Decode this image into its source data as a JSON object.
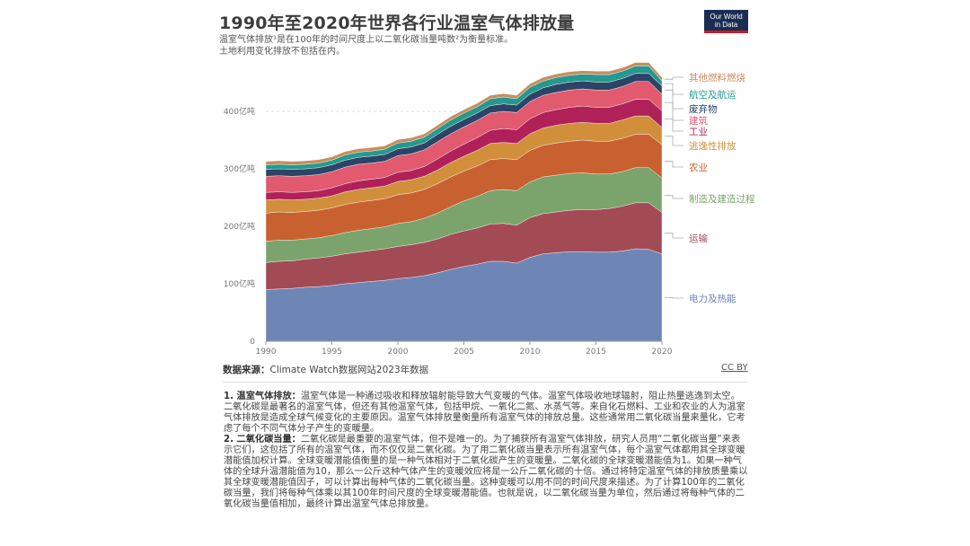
{
  "header": {
    "title": "1990年至2020年世界各行业温室气体排放量",
    "subtitle_line1": "温室气体排放¹是在100年的时间尺度上以二氧化碳当量吨数²为衡量标准。",
    "subtitle_line2": "土地利用变化排放不包括在内。",
    "logo_line1": "Our World",
    "logo_line2": "in Data"
  },
  "footer": {
    "source_label": "数据来源：",
    "source_text": "Climate Watch数据网站2023年数据",
    "license": "CC BY"
  },
  "notes": {
    "n1_title": "1. 温室气体排放：",
    "n1_text": "温室气体是一种通过吸收和释放辐射能导致大气变暖的气体。温室气体吸收地球辐射，阻止热量逃逸到太空。二氧化碳是最著名的温室气体，但还有其他温室气体，包括甲烷、一氧化二氮、水蒸气等。来自化石燃料、工业和农业的人为温室气体排放是造成全球气候变化的主要原因。温室气体排放量衡量所有温室气体的排放总量。这些通常用二氧化碳当量来量化，它考虑了每个不同气体分子产生的变暖量。",
    "n2_title": "2. 二氧化碳当量：",
    "n2_text": "二氧化碳是最重要的温室气体，但不是唯一的。为了捕获所有温室气体排放，研究人员用“二氧化碳当量”来表示它们，这包括了所有的温室气体，而不仅仅是二氧化碳。为了用二氧化碳当量表示所有温室气体，每个温室气体都用其全球变暖潜能值加权计算。全球变暖潜能值衡量的是一种气体相对于二氧化碳产生的变暖量。二氧化碳的全球变暖潜能值为1。如果一种气体的全球升温潜能值为10，那么一公斤这种气体产生的变暖效应将是一公斤二氧化碳的十倍。通过将特定温室气体的排放质量乘以其全球变暖潜能值因子，可以计算出每种气体的二氧化碳当量。这种变暖可以用不同的时间尺度来描述。为了计算100年的二氧化碳当量，我们将每种气体乘以其100年时间尺度的全球变暖潜能值。也就是说，以二氧化碳当量为单位，然后通过将每种气体的二氧化碳当量值相加，最终计算出温室气体总排放量。"
  },
  "chart_data": {
    "type": "area",
    "stacked": true,
    "x": [
      1990,
      1991,
      1992,
      1993,
      1994,
      1995,
      1996,
      1997,
      1998,
      1999,
      2000,
      2001,
      2002,
      2003,
      2004,
      2005,
      2006,
      2007,
      2008,
      2009,
      2010,
      2011,
      2012,
      2013,
      2014,
      2015,
      2016,
      2017,
      2018,
      2019,
      2020
    ],
    "ylim": [
      0,
      500
    ],
    "yticks": [
      0,
      100,
      200,
      300,
      400
    ],
    "ytick_labels": [
      "0",
      "100亿吨",
      "200亿吨",
      "300亿吨",
      "400亿吨"
    ],
    "xticks": [
      1990,
      1995,
      2000,
      2005,
      2010,
      2015,
      2020
    ],
    "series": [
      {
        "name": "电力及热能",
        "color": "#6e86b6",
        "values": [
          90,
          91,
          92,
          94,
          95,
          97,
          100,
          102,
          104,
          106,
          109,
          111,
          114,
          119,
          125,
          130,
          134,
          139,
          139,
          136,
          146,
          152,
          154,
          156,
          156,
          155,
          155,
          157,
          161,
          160,
          152
        ]
      },
      {
        "name": "运输",
        "color": "#a24b55",
        "values": [
          47,
          48,
          48,
          49,
          50,
          51,
          52,
          53,
          54,
          55,
          56,
          57,
          58,
          59,
          61,
          62,
          63,
          65,
          66,
          66,
          69,
          70,
          71,
          72,
          73,
          74,
          76,
          78,
          80,
          81,
          72
        ]
      },
      {
        "name": "制造及建造过程",
        "color": "#7ba36c",
        "values": [
          37,
          37,
          36,
          35,
          35,
          36,
          37,
          38,
          38,
          38,
          40,
          40,
          42,
          45,
          48,
          52,
          55,
          58,
          59,
          60,
          62,
          64,
          64,
          64,
          64,
          62,
          60,
          60,
          61,
          61,
          60
        ]
      },
      {
        "name": "农业",
        "color": "#c9602f",
        "values": [
          49,
          49,
          48,
          48,
          48,
          48,
          49,
          49,
          49,
          49,
          50,
          50,
          50,
          51,
          52,
          52,
          53,
          54,
          54,
          54,
          55,
          55,
          56,
          56,
          57,
          57,
          57,
          58,
          58,
          58,
          58
        ]
      },
      {
        "name": "逃逸性排放",
        "color": "#d18f3b",
        "values": [
          23,
          22,
          22,
          21,
          21,
          21,
          22,
          22,
          22,
          22,
          23,
          23,
          23,
          24,
          25,
          26,
          27,
          28,
          28,
          28,
          29,
          30,
          31,
          31,
          31,
          31,
          31,
          32,
          32,
          32,
          30
        ]
      },
      {
        "name": "工业",
        "color": "#b0215a",
        "values": [
          13,
          13,
          13,
          13,
          13,
          14,
          14,
          15,
          15,
          15,
          16,
          16,
          17,
          19,
          20,
          21,
          22,
          23,
          24,
          24,
          26,
          27,
          27,
          28,
          28,
          28,
          28,
          28,
          29,
          29,
          29
        ]
      },
      {
        "name": "建筑",
        "color": "#e15a6e",
        "values": [
          28,
          28,
          28,
          28,
          28,
          28,
          29,
          29,
          28,
          28,
          29,
          29,
          29,
          30,
          30,
          30,
          30,
          30,
          30,
          30,
          30,
          30,
          30,
          30,
          30,
          30,
          30,
          30,
          31,
          31,
          29
        ]
      },
      {
        "name": "废弃物",
        "color": "#2b4467",
        "values": [
          12,
          12,
          12,
          12,
          12,
          12,
          12,
          12,
          12,
          12,
          12,
          12,
          12,
          13,
          13,
          13,
          13,
          13,
          13,
          13,
          13,
          13,
          14,
          14,
          14,
          14,
          14,
          14,
          14,
          14,
          14
        ]
      },
      {
        "name": "航空及航运",
        "color": "#26998f",
        "values": [
          8,
          8,
          8,
          8,
          8,
          8,
          9,
          9,
          9,
          9,
          10,
          10,
          10,
          10,
          11,
          11,
          11,
          12,
          12,
          11,
          12,
          12,
          12,
          12,
          12,
          13,
          13,
          13,
          13,
          13,
          9
        ]
      },
      {
        "name": "其他燃料燃烧",
        "color": "#c98c5c",
        "values": [
          6,
          6,
          6,
          6,
          6,
          6,
          6,
          6,
          6,
          6,
          6,
          6,
          6,
          6,
          6,
          6,
          6,
          6,
          6,
          6,
          6,
          6,
          6,
          6,
          6,
          6,
          6,
          6,
          6,
          6,
          6
        ]
      }
    ]
  }
}
